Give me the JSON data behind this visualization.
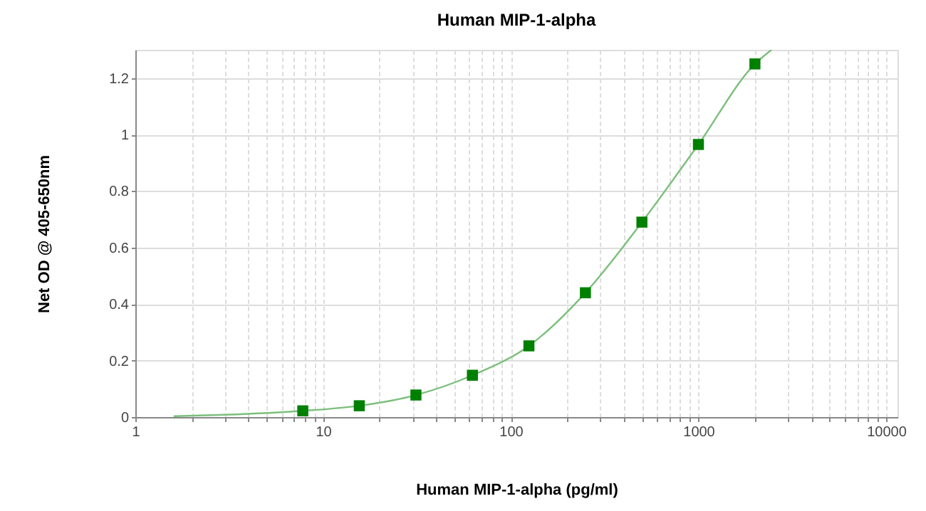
{
  "chart_data": {
    "type": "scatter",
    "title": "Human MIP-1-alpha",
    "xlabel": "Human MIP-1-alpha (pg/ml)",
    "ylabel": "Net OD @ 405-650nm",
    "log": "x",
    "grid": true,
    "xlim": [
      1,
      11500
    ],
    "ylim": [
      0,
      1.3
    ],
    "xticks": [
      1,
      {
        "value": 2,
        "label": null
      },
      {
        "value": 3,
        "label": null
      },
      {
        "value": 4,
        "label": null
      },
      {
        "value": 5,
        "label": null
      },
      {
        "value": 6,
        "label": null
      },
      {
        "value": 7,
        "label": null
      },
      {
        "value": 8,
        "label": null
      },
      {
        "value": 9,
        "label": null
      },
      10,
      {
        "value": 20,
        "label": null
      },
      {
        "value": 30,
        "label": null
      },
      {
        "value": 40,
        "label": null
      },
      {
        "value": 50,
        "label": null
      },
      {
        "value": 60,
        "label": null
      },
      {
        "value": 70,
        "label": null
      },
      {
        "value": 80,
        "label": null
      },
      {
        "value": 90,
        "label": null
      },
      100,
      {
        "value": 200,
        "label": null
      },
      {
        "value": 300,
        "label": null
      },
      {
        "value": 400,
        "label": null
      },
      {
        "value": 500,
        "label": null
      },
      {
        "value": 600,
        "label": null
      },
      {
        "value": 700,
        "label": null
      },
      {
        "value": 800,
        "label": null
      },
      {
        "value": 900,
        "label": null
      },
      1000,
      {
        "value": 2000,
        "label": null
      },
      {
        "value": 3000,
        "label": null
      },
      {
        "value": 4000,
        "label": null
      },
      {
        "value": 5000,
        "label": null
      },
      {
        "value": 6000,
        "label": null
      },
      {
        "value": 7000,
        "label": null
      },
      {
        "value": 8000,
        "label": null
      },
      {
        "value": 9000,
        "label": null
      },
      10000
    ],
    "yticks": [
      0,
      0.2,
      0.4,
      0.6,
      0.8,
      1,
      1.2
    ],
    "series": [
      {
        "type": "line",
        "color": "#7cbf7c",
        "marker": "none",
        "line_style": "solid",
        "x": [
          1.6,
          3,
          7.8,
          15.6,
          31.25,
          62.5,
          125,
          250,
          500,
          1000,
          2000,
          2450
        ],
        "values": [
          0.003,
          0.008,
          0.022,
          0.04,
          0.078,
          0.148,
          0.252,
          0.44,
          0.69,
          0.965,
          1.25,
          1.3
        ]
      },
      {
        "color": "#008000",
        "marker": "square",
        "x": [
          7.8,
          15.6,
          31.25,
          62.5,
          125,
          250,
          500,
          1000,
          2000
        ],
        "values": [
          0.022,
          0.04,
          0.078,
          0.148,
          0.252,
          0.44,
          0.69,
          0.965,
          1.25
        ]
      }
    ]
  }
}
